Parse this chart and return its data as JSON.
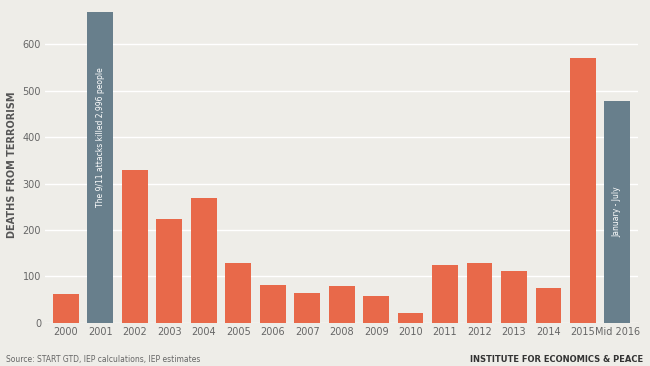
{
  "years": [
    "2000",
    "2001",
    "2002",
    "2003",
    "2004",
    "2005",
    "2006",
    "2007",
    "2008",
    "2009",
    "2010",
    "2011",
    "2012",
    "2013",
    "2014",
    "2015",
    "Mid 2016"
  ],
  "values": [
    63,
    670,
    330,
    223,
    268,
    128,
    82,
    65,
    80,
    57,
    22,
    124,
    128,
    112,
    75,
    570,
    478
  ],
  "bar_colors": [
    "#e8694a",
    "#687f8c",
    "#e8694a",
    "#e8694a",
    "#e8694a",
    "#e8694a",
    "#e8694a",
    "#e8694a",
    "#e8694a",
    "#e8694a",
    "#e8694a",
    "#e8694a",
    "#e8694a",
    "#e8694a",
    "#e8694a",
    "#e8694a",
    "#687f8c"
  ],
  "special_bar_index": 1,
  "annotation_text": "The 9/11 attacks killed 2,996 people",
  "mid2016_label": "January - July",
  "ylabel": "DEATHS FROM TERRORISM",
  "ylim": [
    0,
    680
  ],
  "yticks": [
    0,
    100,
    200,
    300,
    400,
    500,
    600
  ],
  "background_color": "#eeede8",
  "bar_color_salmon": "#e8694a",
  "bar_color_steel": "#687f8c",
  "source_text": "Source: START GTD, IEP calculations, IEP estimates",
  "institute_text": "INSTITUTE FOR ECONOMICS & PEACE",
  "grid_color": "#ffffff",
  "ylabel_fontsize": 7,
  "tick_fontsize": 7
}
